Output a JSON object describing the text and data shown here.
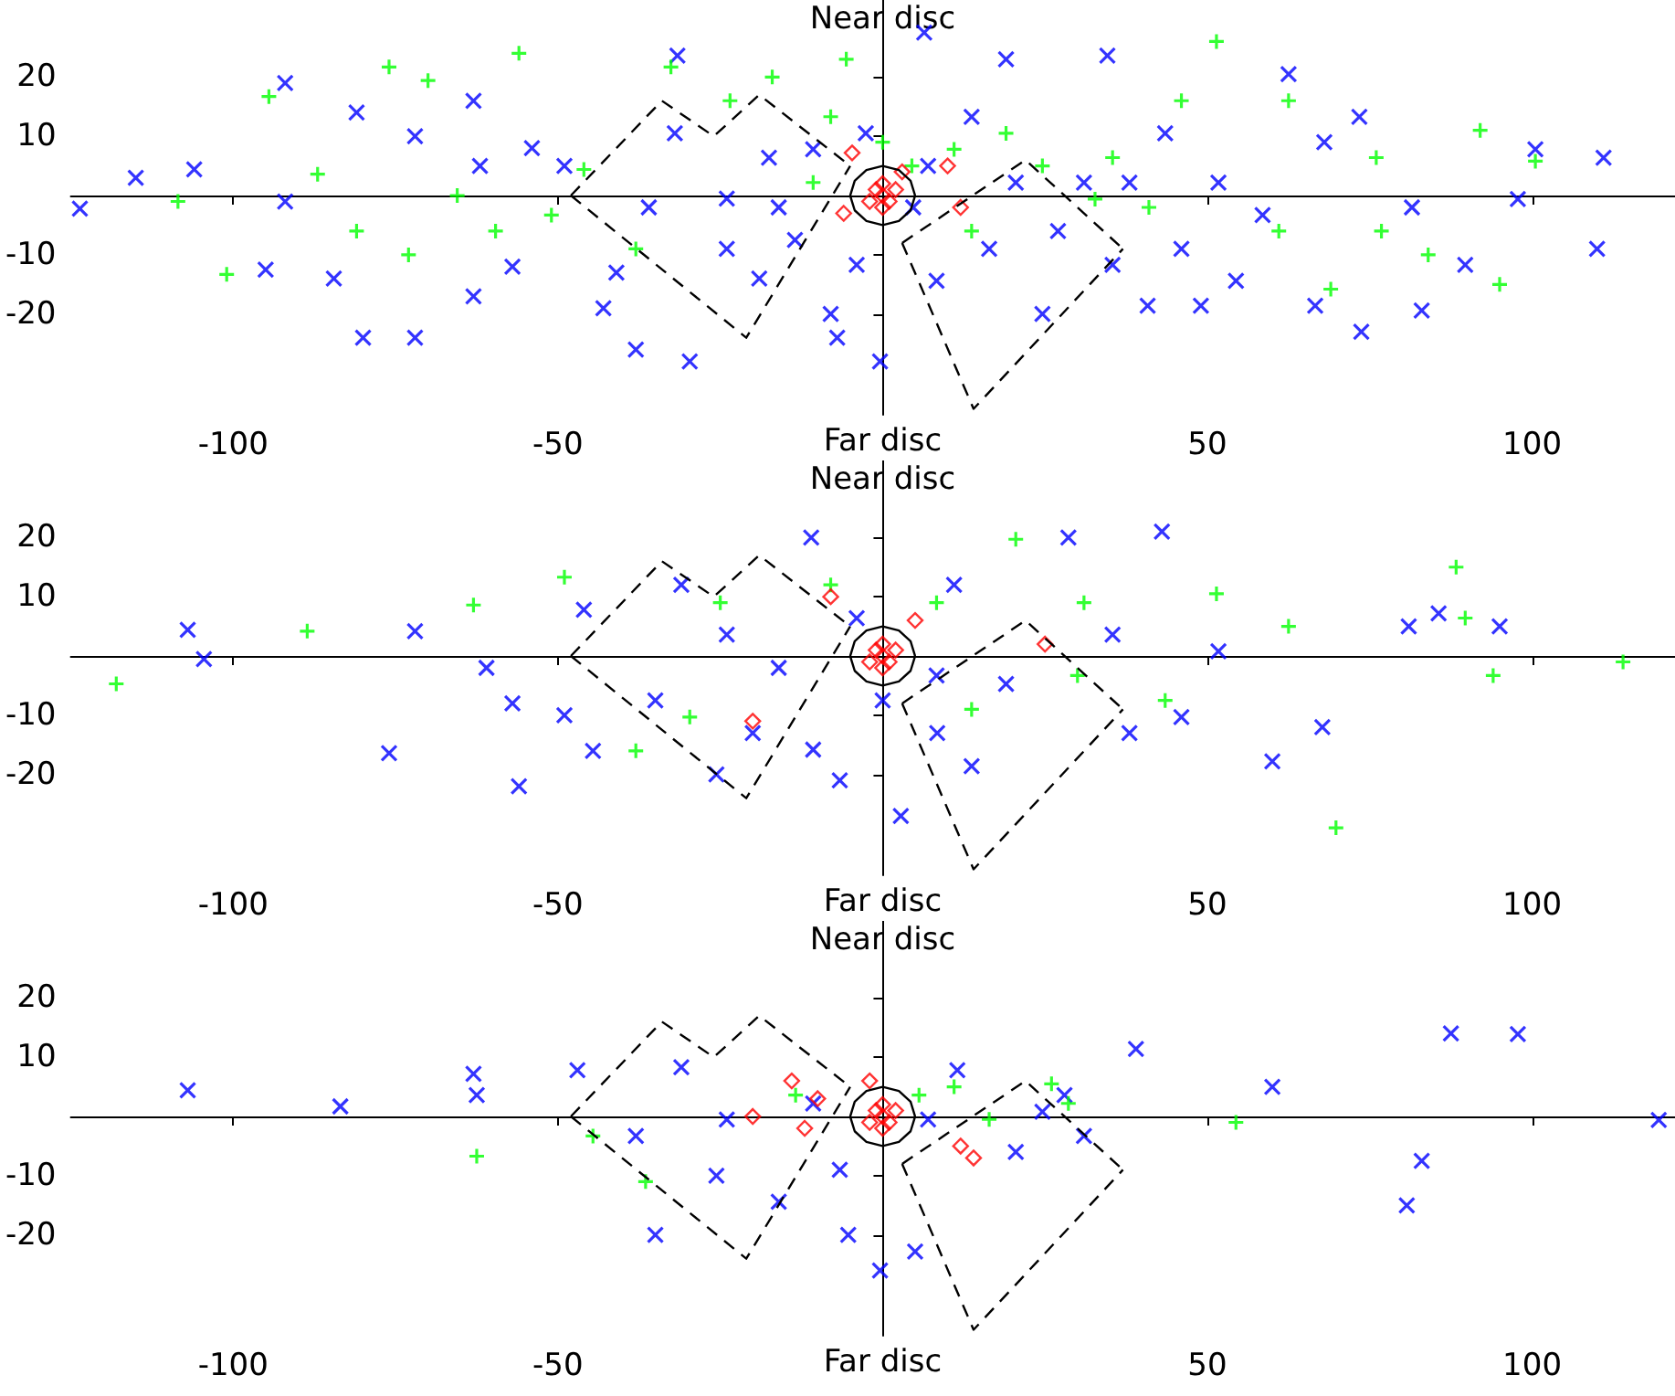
{
  "chart_data": [
    {
      "type": "scatter",
      "xlim": [
        -125,
        122
      ],
      "ylim": [
        -37,
        33
      ],
      "xticks": [
        -100,
        -50,
        50,
        100
      ],
      "yticks": [
        -20,
        -10,
        10,
        20
      ],
      "annotations": [
        "Near disc",
        "Far disc"
      ],
      "series": [
        {
          "color": "#0000ff",
          "marker": "cross",
          "x": [
            -123.6,
            -115,
            -106,
            -92,
            -81,
            -84.5,
            -95,
            -92,
            -72,
            -63,
            -80,
            -72,
            -63,
            -57,
            -62,
            -49,
            -54,
            -43,
            -41,
            -31.6,
            -36,
            -32,
            -24,
            -19,
            -17.5,
            -13.5,
            -10.7,
            -8,
            -4,
            6.4,
            4.7,
            8.3,
            13.7,
            16.4,
            19,
            20.5,
            24.6,
            27,
            34.6,
            35.4,
            38,
            40.8,
            46,
            51.7,
            54.4,
            62.5,
            66.6,
            68,
            73.4,
            73.7,
            81.5,
            83,
            89.7,
            97.8,
            111,
            110,
            100.5,
            43.5,
            31,
            58.5,
            49,
            -29.7,
            -38,
            -0.4,
            -7,
            7,
            -24,
            -2.6,
            -16
          ],
          "values": [
            -2.2,
            3,
            4.4,
            19,
            14,
            -14,
            -12.5,
            -1,
            10,
            16,
            -24,
            -24,
            -17,
            -12,
            5,
            5,
            8,
            -19,
            -13,
            23.6,
            -2,
            10.5,
            -9,
            -14,
            6.4,
            -7.5,
            7.8,
            -20,
            -11.7,
            27.5,
            -2,
            -14.4,
            13.3,
            -9,
            23,
            2.2,
            -20,
            -6,
            23.6,
            -11.7,
            2.2,
            -18.6,
            -9,
            2.2,
            -14.4,
            20.5,
            -18.6,
            9,
            13.3,
            -23,
            -2,
            -19.4,
            -11.7,
            -0.6,
            6.4,
            -9,
            7.8,
            10.5,
            2.2,
            -3.3,
            -18.6,
            -28,
            -26,
            -28,
            -24,
            5,
            -0.5,
            10.5,
            -2
          ]
        },
        {
          "color": "#00ff00",
          "marker": "plus",
          "x": [
            -108.5,
            -101,
            -94.5,
            -87,
            -81,
            -76,
            -70,
            -65.5,
            -56,
            -51,
            -46,
            -32.6,
            -23.5,
            -17,
            -10.7,
            -8,
            -5.6,
            4.5,
            11,
            19,
            24.6,
            32.7,
            41,
            51.4,
            61,
            62.5,
            76,
            84,
            92,
            95,
            100.5,
            69,
            76.8,
            46,
            35.4,
            -38,
            -59.6,
            -73,
            13.7,
            0
          ],
          "values": [
            -1,
            -13.3,
            16.7,
            3.6,
            -6,
            21.7,
            19.4,
            0,
            24,
            -3.3,
            4.4,
            21.7,
            16,
            20,
            2.2,
            13.3,
            23,
            5,
            7.8,
            10.5,
            5,
            -0.6,
            -2,
            26,
            -6,
            16,
            6.4,
            -10,
            11,
            -15,
            5.8,
            -15.8,
            -6,
            16,
            6.4,
            -9,
            -6,
            -10,
            -6,
            9
          ]
        },
        {
          "color": "#ff0000",
          "marker": "diamond",
          "x": [
            0,
            1,
            -1,
            2,
            -2,
            0,
            0,
            -4.7,
            3,
            10,
            12,
            -6
          ],
          "values": [
            0,
            -1,
            1,
            1,
            -1,
            2,
            -2,
            7.2,
            4,
            5,
            -2,
            -3
          ]
        },
        {
          "type": "line",
          "color": "#000000",
          "line_style": "solid",
          "x": [
            -5,
            -4.3,
            -2.5,
            0,
            2.5,
            4.3,
            5
          ],
          "values": [
            0,
            2.5,
            4.3,
            5,
            4.3,
            2.5,
            0
          ]
        },
        {
          "type": "line",
          "color": "#000000",
          "line_style": "solid",
          "x": [
            -5,
            -4.3,
            -2.5,
            0,
            2.5,
            4.3,
            5
          ],
          "values": [
            0,
            -2.5,
            -4.3,
            -5,
            -4.3,
            -2.5,
            0
          ]
        },
        {
          "type": "line",
          "color": "#000000",
          "line_style": "dashed",
          "x": [
            -48,
            -34,
            -26,
            -19,
            -5
          ],
          "values": [
            0,
            16,
            10,
            17,
            5
          ]
        },
        {
          "type": "line",
          "color": "#000000",
          "line_style": "dashed",
          "x": [
            -48,
            -21,
            -5
          ],
          "values": [
            0,
            -24,
            5
          ]
        },
        {
          "type": "line",
          "color": "#000000",
          "line_style": "dashed",
          "x": [
            3,
            14,
            37
          ],
          "values": [
            -8,
            -36,
            -9
          ]
        },
        {
          "type": "line",
          "color": "#000000",
          "line_style": "dashed",
          "x": [
            3,
            22,
            37
          ],
          "values": [
            -8,
            6,
            -9
          ]
        }
      ]
    },
    {
      "type": "scatter",
      "xlim": [
        -125,
        122
      ],
      "ylim": [
        -37,
        33
      ],
      "xticks": [
        -100,
        -50,
        50,
        100
      ],
      "yticks": [
        -20,
        -10,
        10,
        20
      ],
      "annotations": [
        "Near disc",
        "Far disc"
      ],
      "series": [
        {
          "color": "#0000ff",
          "marker": "cross",
          "x": [
            -107,
            -104.5,
            -76,
            -72,
            -61,
            -57,
            -56,
            -49,
            -46,
            -44.6,
            -35,
            -31,
            -25.6,
            -20,
            -16,
            -11,
            -6.6,
            2.8,
            8.4,
            11,
            13.7,
            19,
            28.6,
            35.4,
            38,
            43,
            46,
            51.7,
            60,
            67.7,
            81,
            85.6,
            0,
            -4,
            8.3,
            -10.7,
            -24,
            95
          ],
          "values": [
            4.4,
            -0.5,
            -16.4,
            4.2,
            -2,
            -8,
            -22,
            -10,
            7.8,
            -16,
            -7.5,
            12,
            -20,
            -13,
            -2,
            20,
            -21,
            -27,
            -13,
            12,
            -18.6,
            -4.7,
            20,
            3.6,
            -13,
            21,
            -10.3,
            0.8,
            -17.8,
            -12,
            5,
            7.2,
            -7.5,
            6.4,
            -3.3,
            -15.8,
            3.6,
            5
          ]
        },
        {
          "color": "#00ff00",
          "marker": "plus",
          "x": [
            -118,
            -88.6,
            -63,
            -49,
            -25,
            -8,
            20.5,
            31,
            43.5,
            51.4,
            62.5,
            69.8,
            88.3,
            89.7,
            94,
            114,
            -29.7,
            -38,
            8.3,
            13.7,
            30
          ],
          "values": [
            -4.7,
            4.2,
            8.6,
            13.3,
            9,
            12,
            19.7,
            9,
            -7.5,
            10.5,
            5,
            -29,
            15,
            6.4,
            -3.3,
            -1,
            -10.3,
            -16,
            9,
            -9,
            -3.3
          ]
        },
        {
          "color": "#ff0000",
          "marker": "diamond",
          "x": [
            0,
            1,
            -1,
            2,
            -2,
            0,
            0,
            -8,
            -20,
            25,
            5
          ],
          "values": [
            0,
            -1,
            1,
            1,
            -1,
            2,
            -2,
            10,
            -11,
            2,
            6
          ]
        },
        {
          "type": "line",
          "color": "#000000",
          "line_style": "solid",
          "x": [
            -5,
            -4.3,
            -2.5,
            0,
            2.5,
            4.3,
            5
          ],
          "values": [
            0,
            2.5,
            4.3,
            5,
            4.3,
            2.5,
            0
          ]
        },
        {
          "type": "line",
          "color": "#000000",
          "line_style": "solid",
          "x": [
            -5,
            -4.3,
            -2.5,
            0,
            2.5,
            4.3,
            5
          ],
          "values": [
            0,
            -2.5,
            -4.3,
            -5,
            -4.3,
            -2.5,
            0
          ]
        },
        {
          "type": "line",
          "color": "#000000",
          "line_style": "dashed",
          "x": [
            -48,
            -34,
            -26,
            -19,
            -5
          ],
          "values": [
            0,
            16,
            10,
            17,
            5
          ]
        },
        {
          "type": "line",
          "color": "#000000",
          "line_style": "dashed",
          "x": [
            -48,
            -21,
            -5
          ],
          "values": [
            0,
            -24,
            5
          ]
        },
        {
          "type": "line",
          "color": "#000000",
          "line_style": "dashed",
          "x": [
            3,
            14,
            37
          ],
          "values": [
            -8,
            -36,
            -9
          ]
        },
        {
          "type": "line",
          "color": "#000000",
          "line_style": "dashed",
          "x": [
            3,
            22,
            37
          ],
          "values": [
            -8,
            6,
            -9
          ]
        }
      ]
    },
    {
      "type": "scatter",
      "xlim": [
        -125,
        122
      ],
      "ylim": [
        -37,
        33
      ],
      "xticks": [
        -100,
        -50,
        50,
        100
      ],
      "yticks": [
        -20,
        -10,
        10,
        20
      ],
      "annotations": [
        "Near disc",
        "Far disc"
      ],
      "series": [
        {
          "color": "#0000ff",
          "marker": "cross",
          "x": [
            -107,
            -83.5,
            -63,
            -62.5,
            -47,
            -38,
            -35,
            -31,
            -25.6,
            -24,
            -16,
            -10.7,
            -6.6,
            -5.3,
            -0.4,
            5,
            7,
            11.5,
            20.5,
            28,
            39,
            60,
            83,
            80.7,
            87.5,
            97.8,
            119.5,
            31,
            24.6
          ],
          "values": [
            4.4,
            1.7,
            7.2,
            3.6,
            7.8,
            -3.3,
            -20,
            8.3,
            -10,
            -0.5,
            -14.4,
            2.2,
            -9,
            -20,
            -26,
            -22.8,
            -0.5,
            7.8,
            -6,
            3.6,
            11.4,
            5,
            -7.5,
            -15,
            14,
            13.9,
            -0.6,
            -3.3,
            0.8
          ]
        },
        {
          "color": "#00ff00",
          "marker": "plus",
          "x": [
            -62.5,
            -44.6,
            -36.5,
            5.6,
            11,
            16.4,
            26,
            28.6,
            54.4,
            -13.4
          ],
          "values": [
            -6.7,
            -3.3,
            -11,
            3.6,
            5,
            -0.5,
            5.5,
            2.2,
            -1,
            3.6
          ]
        },
        {
          "color": "#ff0000",
          "marker": "diamond",
          "x": [
            0,
            1,
            -1,
            2,
            -2,
            0,
            0,
            -14,
            -20,
            -10,
            -12,
            12,
            14,
            -2
          ],
          "values": [
            0,
            -1,
            1,
            1,
            -1,
            2,
            -2,
            6,
            0,
            3,
            -2,
            -5,
            -7,
            6
          ]
        },
        {
          "type": "line",
          "color": "#000000",
          "line_style": "solid",
          "x": [
            -5,
            -4.3,
            -2.5,
            0,
            2.5,
            4.3,
            5
          ],
          "values": [
            0,
            2.5,
            4.3,
            5,
            4.3,
            2.5,
            0
          ]
        },
        {
          "type": "line",
          "color": "#000000",
          "line_style": "solid",
          "x": [
            -5,
            -4.3,
            -2.5,
            0,
            2.5,
            4.3,
            5
          ],
          "values": [
            0,
            -2.5,
            -4.3,
            -5,
            -4.3,
            -2.5,
            0
          ]
        },
        {
          "type": "line",
          "color": "#000000",
          "line_style": "dashed",
          "x": [
            -48,
            -34,
            -26,
            -19,
            -5
          ],
          "values": [
            0,
            16,
            10,
            17,
            5
          ]
        },
        {
          "type": "line",
          "color": "#000000",
          "line_style": "dashed",
          "x": [
            -48,
            -21,
            -5
          ],
          "values": [
            0,
            -24,
            5
          ]
        },
        {
          "type": "line",
          "color": "#000000",
          "line_style": "dashed",
          "x": [
            3,
            14,
            37
          ],
          "values": [
            -8,
            -36,
            -9
          ]
        },
        {
          "type": "line",
          "color": "#000000",
          "line_style": "dashed",
          "x": [
            3,
            22,
            37
          ],
          "values": [
            -8,
            6,
            -9
          ]
        }
      ]
    }
  ]
}
